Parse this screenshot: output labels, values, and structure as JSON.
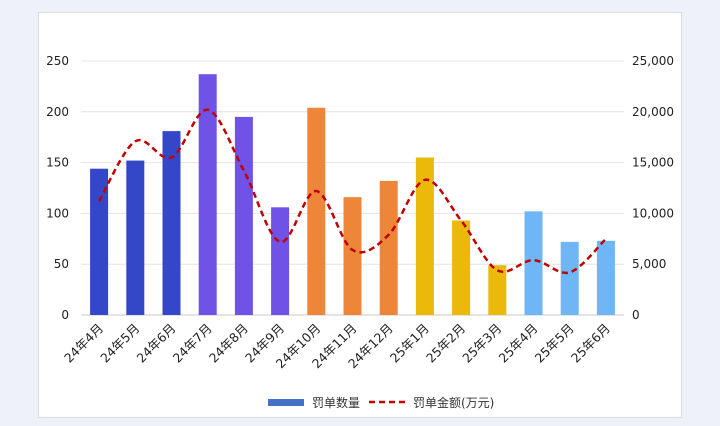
{
  "chart_data": {
    "type": "bar",
    "categories": [
      "24年4月",
      "24年5月",
      "24年6月",
      "24年7月",
      "24年8月",
      "24年9月",
      "24年10月",
      "24年11月",
      "24年12月",
      "25年1月",
      "25年2月",
      "25年3月",
      "25年4月",
      "25年5月",
      "25年6月"
    ],
    "series": [
      {
        "name": "罚单数量",
        "type": "bar",
        "axis": "left",
        "values": [
          144,
          152,
          181,
          237,
          195,
          106,
          204,
          116,
          132,
          155,
          93,
          49,
          102,
          72,
          73
        ]
      },
      {
        "name": "罚单金额(万元)",
        "type": "line",
        "style": "dashed",
        "smooth": true,
        "axis": "right",
        "values": [
          11200,
          17100,
          15500,
          20200,
          14200,
          7200,
          12200,
          6400,
          7900,
          13300,
          9300,
          4400,
          5400,
          4200,
          7500
        ]
      }
    ],
    "y_left": {
      "ylim": [
        0,
        250
      ],
      "ticks": [
        "0",
        "50",
        "100",
        "150",
        "200",
        "250"
      ]
    },
    "y_right": {
      "ylim": [
        0,
        25000
      ],
      "ticks": [
        "0",
        "5,000",
        "10,000",
        "15,000",
        "20,000",
        "25,000"
      ]
    },
    "bar_colors": [
      "#3547c9",
      "#3547c9",
      "#3547c9",
      "#7052e6",
      "#7052e6",
      "#7052e6",
      "#ee8639",
      "#ee8639",
      "#ee8639",
      "#eab90a",
      "#eab90a",
      "#eab90a",
      "#6fb6f6",
      "#6fb6f6",
      "#6fb6f6"
    ],
    "line_color": "#c00000",
    "legend_swatch_color": "#4472c4",
    "grid": true,
    "legend_position": "bottom"
  }
}
